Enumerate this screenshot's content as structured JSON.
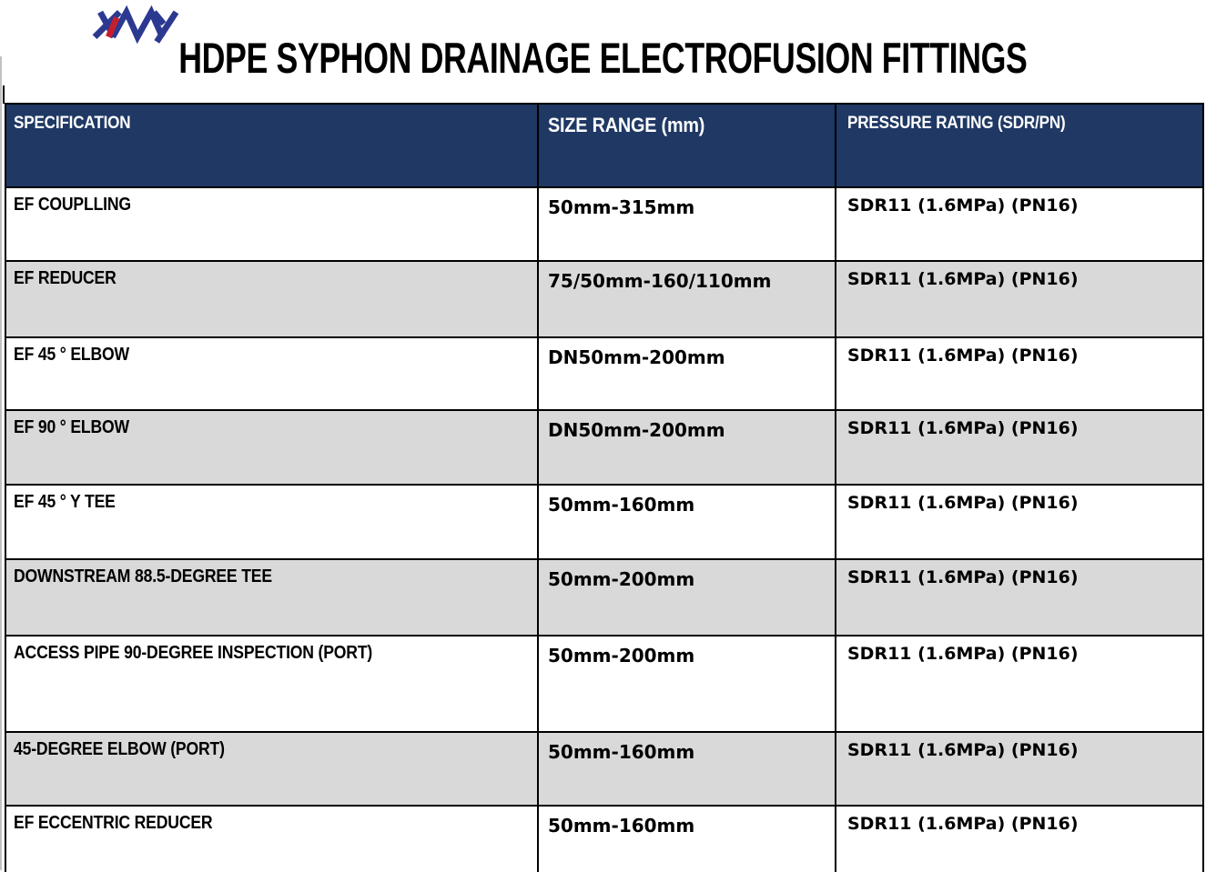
{
  "logo": {
    "text": "XMY",
    "colors": {
      "blue": "#2B3990",
      "red": "#C41F2F"
    }
  },
  "title": "HDPE SYPHON DRAINAGE ELECTROFUSION FITTINGS",
  "table": {
    "columns": [
      {
        "label": "SPECIFICATION"
      },
      {
        "label": "SIZE RANGE (mm)"
      },
      {
        "label": "PRESSURE RATING (SDR/PN)"
      }
    ],
    "rows": [
      {
        "specification": "EF COUPLLING",
        "size_range": "50mm-315mm",
        "pressure_rating": "SDR11 (1.6MPa) (PN16)"
      },
      {
        "specification": "EF REDUCER",
        "size_range": "75/50mm-160/110mm",
        "pressure_rating": "SDR11 (1.6MPa) (PN16)"
      },
      {
        "specification": "EF 45 ° ELBOW",
        "size_range": "DN50mm-200mm",
        "pressure_rating": "SDR11 (1.6MPa) (PN16)"
      },
      {
        "specification": "EF 90 ° ELBOW",
        "size_range": "DN50mm-200mm",
        "pressure_rating": "SDR11 (1.6MPa) (PN16)"
      },
      {
        "specification": "EF 45 ° Y TEE",
        "size_range": "50mm-160mm",
        "pressure_rating": "SDR11 (1.6MPa) (PN16)"
      },
      {
        "specification": "DOWNSTREAM 88.5-DEGREE TEE",
        "size_range": "50mm-200mm",
        "pressure_rating": "SDR11 (1.6MPa) (PN16)"
      },
      {
        "specification": "ACCESS PIPE 90-DEGREE INSPECTION (PORT)",
        "size_range": "50mm-200mm",
        "pressure_rating": "SDR11 (1.6MPa) (PN16)"
      },
      {
        "specification": "45-DEGREE ELBOW (PORT)",
        "size_range": "50mm-160mm",
        "pressure_rating": "SDR11 (1.6MPa) (PN16)"
      },
      {
        "specification": "EF ECCENTRIC REDUCER",
        "size_range": "50mm-160mm",
        "pressure_rating": "SDR11 (1.6MPa) (PN16)"
      }
    ]
  },
  "colors": {
    "header_bg": "#1F3864",
    "header_text": "#FFFFFF",
    "row_bg": "#FFFFFF",
    "row_alt_bg": "#D9D9D9",
    "border": "#000000",
    "title_text": "#000000"
  }
}
